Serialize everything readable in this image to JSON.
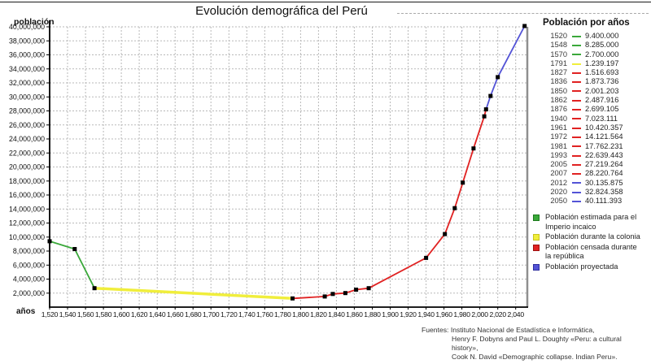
{
  "title": "Evolución demográfica del Perú",
  "y_axis_title": "población",
  "x_axis_title": "años",
  "colors": {
    "green": {
      "main": "#3aa83a",
      "dark": "#1d7a1d"
    },
    "yellow": {
      "main": "#f0ee3c",
      "dark": "#c9c41e"
    },
    "red": {
      "main": "#e02222",
      "dark": "#9e1212"
    },
    "blue": {
      "main": "#5353d6",
      "dark": "#2f2f9e"
    }
  },
  "table": {
    "header": "Población por años",
    "rows": [
      {
        "year": "1520",
        "value": "9.400.000",
        "color": "green"
      },
      {
        "year": "1548",
        "value": "8.285.000",
        "color": "green"
      },
      {
        "year": "1570",
        "value": "2.700.000",
        "color": "green"
      },
      {
        "year": "1791",
        "value": "1.239.197",
        "color": "yellow"
      },
      {
        "year": "1827",
        "value": "1.516.693",
        "color": "red"
      },
      {
        "year": "1836",
        "value": "1.873.736",
        "color": "red"
      },
      {
        "year": "1850",
        "value": "2.001.203",
        "color": "red"
      },
      {
        "year": "1862",
        "value": "2.487.916",
        "color": "red"
      },
      {
        "year": "1876",
        "value": "2.699.105",
        "color": "red"
      },
      {
        "year": "1940",
        "value": "7.023.111",
        "color": "red"
      },
      {
        "year": "1961",
        "value": "10.420.357",
        "color": "red"
      },
      {
        "year": "1972",
        "value": "14.121.564",
        "color": "red"
      },
      {
        "year": "1981",
        "value": "17.762.231",
        "color": "red"
      },
      {
        "year": "1993",
        "value": "22.639.443",
        "color": "red"
      },
      {
        "year": "2005",
        "value": "27.219.264",
        "color": "red"
      },
      {
        "year": "2007",
        "value": "28.220.764",
        "color": "red"
      },
      {
        "year": "2012",
        "value": "30.135.875",
        "color": "blue"
      },
      {
        "year": "2020",
        "value": "32.824.358",
        "color": "blue"
      },
      {
        "year": "2050",
        "value": "40.111.393",
        "color": "blue"
      }
    ]
  },
  "legend": [
    {
      "label": "Población estimada para el Imperio incaico",
      "color": "green"
    },
    {
      "label": "Población durante la colonia",
      "color": "yellow"
    },
    {
      "label": "Población censada durante la república",
      "color": "red"
    },
    {
      "label": "Población proyectada",
      "color": "blue"
    }
  ],
  "sources": [
    "Fuentes: Instituto Nacional de Estadística e Informática,",
    "Henry F. Dobyns and Paul L. Doughty «Peru: a cultural history»,",
    "Cook N. David «Demographic collapse. Indian Peru»."
  ],
  "chart_data": {
    "type": "line",
    "title": "Evolución demográfica del Perú",
    "xlabel": "años",
    "ylabel": "población",
    "xlim": [
      1520,
      2053
    ],
    "ylim": [
      0,
      40000000
    ],
    "grid": true,
    "legend_position": "right",
    "x_ticks": [
      1520,
      1540,
      1560,
      1580,
      1600,
      1620,
      1640,
      1660,
      1680,
      1700,
      1720,
      1740,
      1760,
      1780,
      1800,
      1820,
      1840,
      1860,
      1880,
      1900,
      1920,
      1940,
      1960,
      1980,
      2000,
      2020,
      2040
    ],
    "y_ticks": [
      2000000,
      4000000,
      6000000,
      8000000,
      10000000,
      12000000,
      14000000,
      16000000,
      18000000,
      20000000,
      22000000,
      24000000,
      26000000,
      28000000,
      30000000,
      32000000,
      34000000,
      36000000,
      38000000,
      40000000
    ],
    "marker": "black-square",
    "series": [
      {
        "name": "Población estimada para el Imperio incaico",
        "color": "green",
        "points": [
          [
            1520,
            9400000
          ],
          [
            1548,
            8285000
          ],
          [
            1570,
            2700000
          ]
        ]
      },
      {
        "name": "Población durante la colonia",
        "color": "yellow",
        "points": [
          [
            1570,
            2700000
          ],
          [
            1791,
            1239197
          ]
        ]
      },
      {
        "name": "Población censada durante la república",
        "color": "red",
        "points": [
          [
            1791,
            1239197
          ],
          [
            1827,
            1516693
          ],
          [
            1836,
            1873736
          ],
          [
            1850,
            2001203
          ],
          [
            1862,
            2487916
          ],
          [
            1876,
            2699105
          ],
          [
            1940,
            7023111
          ],
          [
            1961,
            10420357
          ],
          [
            1972,
            14121564
          ],
          [
            1981,
            17762231
          ],
          [
            1993,
            22639443
          ],
          [
            2005,
            27219264
          ],
          [
            2007,
            28220764
          ]
        ]
      },
      {
        "name": "Población proyectada",
        "color": "blue",
        "points": [
          [
            2007,
            28220764
          ],
          [
            2012,
            30135875
          ],
          [
            2020,
            32824358
          ],
          [
            2050,
            40111393
          ]
        ]
      }
    ]
  }
}
